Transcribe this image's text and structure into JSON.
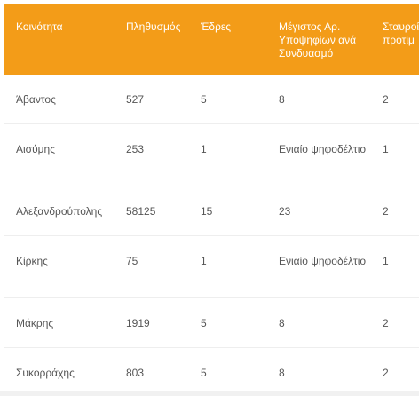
{
  "table": {
    "headers": [
      "Κοινότητα",
      "Πληθυσμός",
      "Έδρες",
      "Μέγιστος Αρ. Υποψηφίων ανά Συνδυασμό",
      "Σταυροί προτίμ"
    ],
    "rows": [
      [
        "Άβαντος",
        "527",
        "5",
        "8",
        "2"
      ],
      [
        "Αισύμης",
        "253",
        "1",
        "Ενιαίο ψηφοδέλτιο",
        "1"
      ],
      [
        "Αλεξανδρούπολης",
        "58125",
        "15",
        "23",
        "2"
      ],
      [
        "Κίρκης",
        "75",
        "1",
        "Ενιαίο ψηφοδέλτιο",
        "1"
      ],
      [
        "Μάκρης",
        "1919",
        "5",
        "8",
        "2"
      ],
      [
        "Συκορράχης",
        "803",
        "5",
        "8",
        "2"
      ]
    ]
  },
  "colors": {
    "header_bg": "#f39c18",
    "header_text": "#ffffff",
    "cell_text": "#555555",
    "row_border": "#eeeeee"
  }
}
